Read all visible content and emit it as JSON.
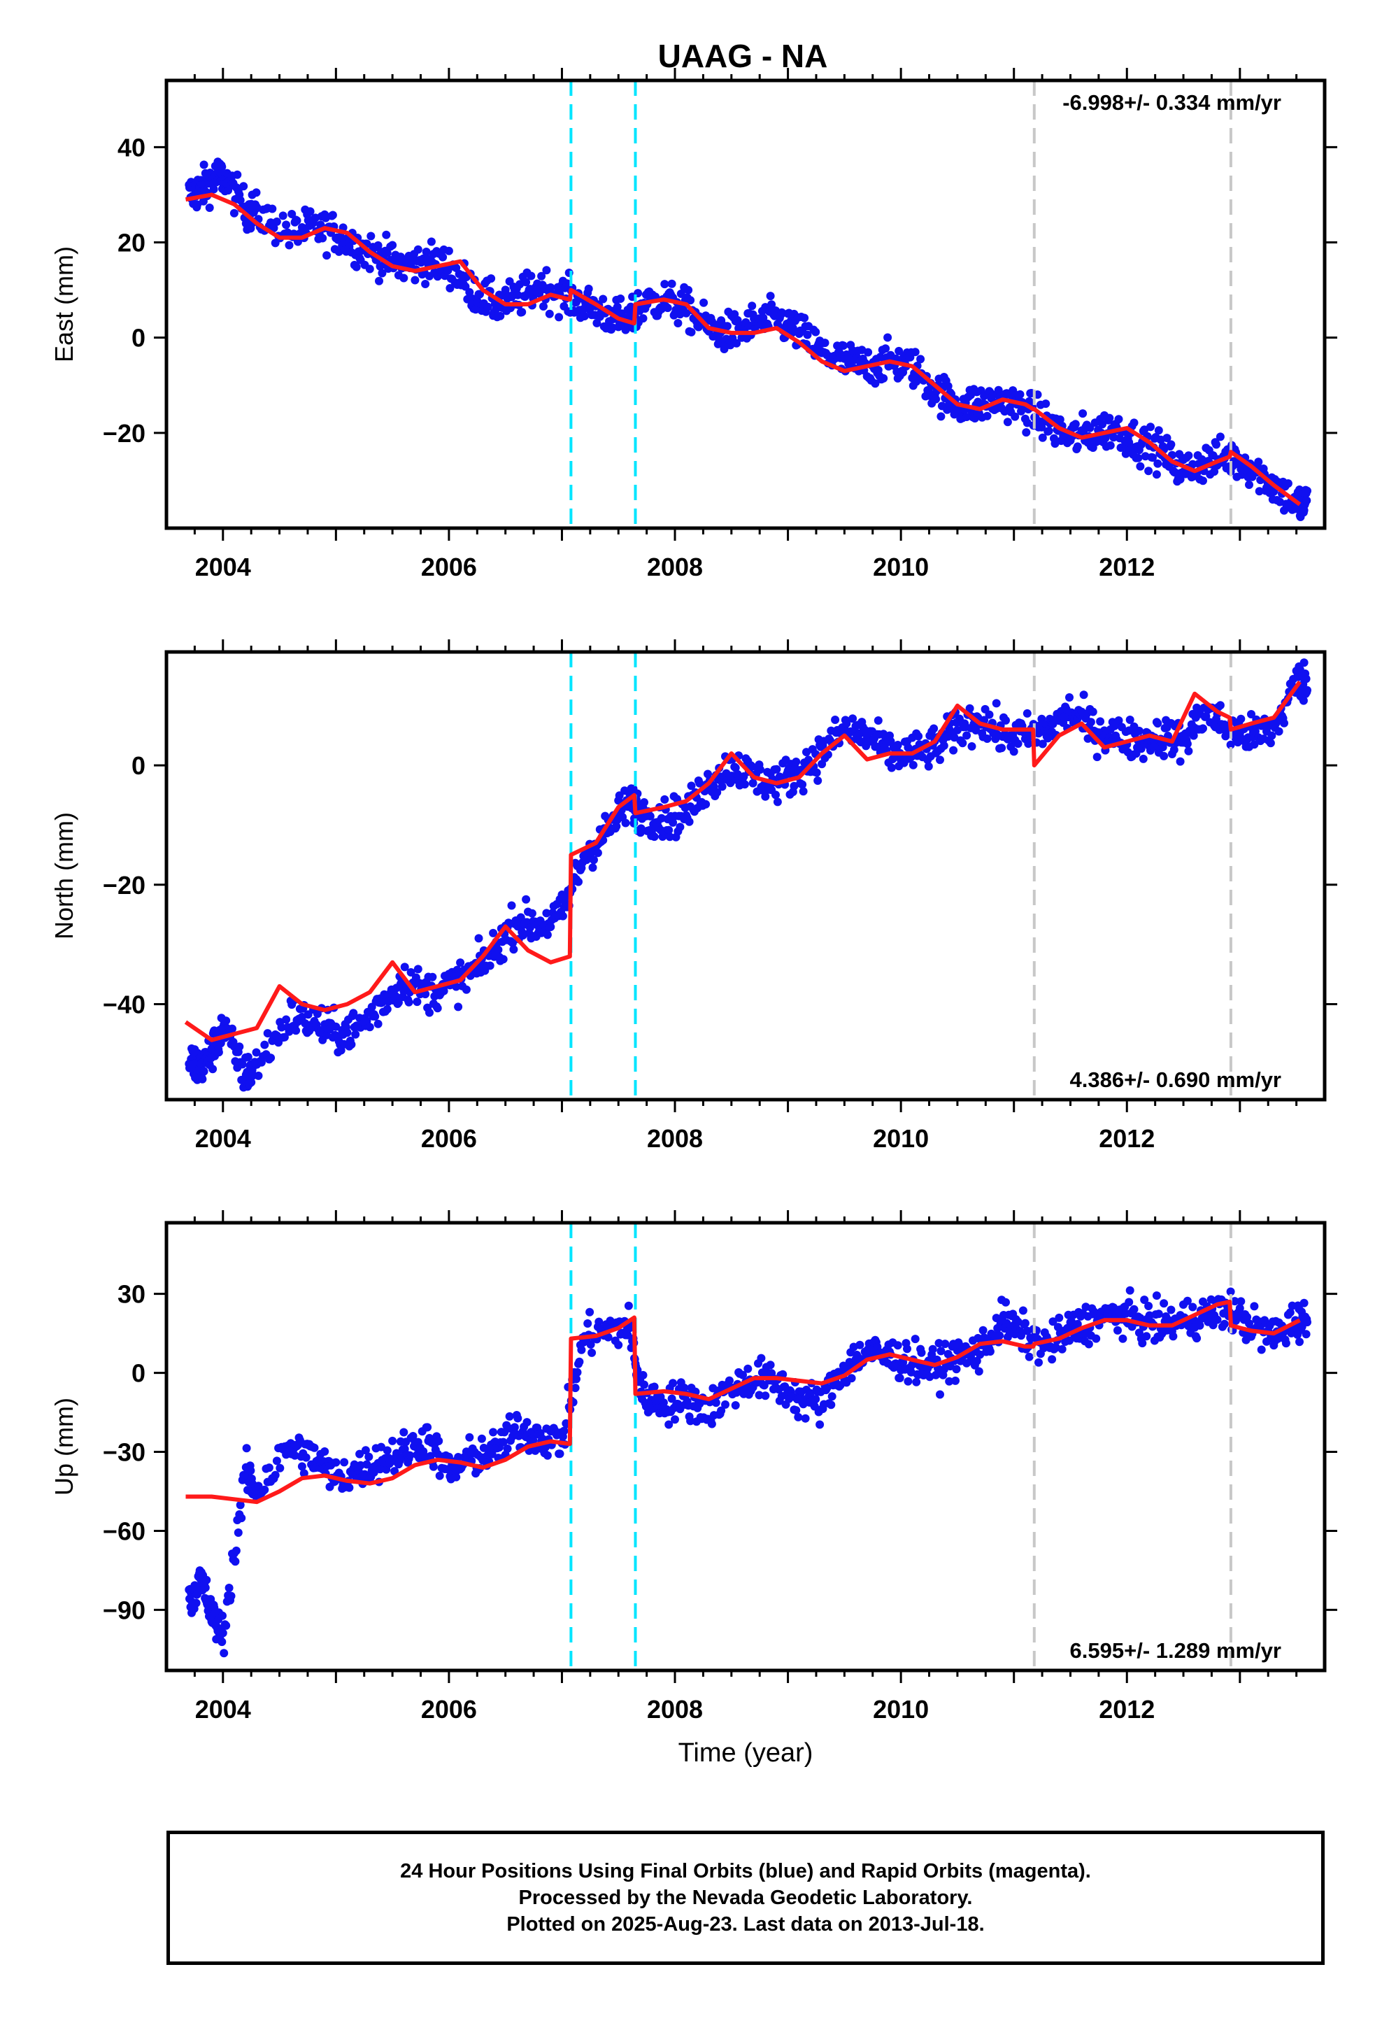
{
  "title": "UAAG - NA",
  "colors": {
    "points": "#1010f0",
    "fit": "#ff1a1a",
    "cyan_break": "#00e5ff",
    "grey_break": "#c8c8c8",
    "axis": "#000000"
  },
  "footer": {
    "line1": "24 Hour Positions Using Final Orbits (blue) and Rapid Orbits (magenta).",
    "line2": "Processed by the Nevada Geodetic Laboratory.",
    "line3": "Plotted on 2025-Aug-23. Last data on 2013-Jul-18."
  },
  "chart_data": [
    {
      "type": "scatter",
      "component": "East",
      "ylabel": "East (mm)",
      "xlabel": "",
      "xlim": [
        2003.5,
        2013.75
      ],
      "ylim": [
        -40,
        54
      ],
      "yticks": [
        -20,
        0,
        20,
        40
      ],
      "xticks": [
        2004,
        2006,
        2008,
        2010,
        2012
      ],
      "grid": false,
      "rate_label": "-6.998+/- 0.334 mm/yr",
      "rate_position": "top-right",
      "breaks_cyan": [
        2007.08,
        2007.65
      ],
      "breaks_grey": [
        2011.18,
        2012.92
      ],
      "series": [
        {
          "style": "points",
          "x": [
            2003.7,
            2003.8,
            2003.9,
            2004.0,
            2004.2,
            2004.3,
            2004.6,
            2004.8,
            2005.0,
            2005.2,
            2005.4,
            2005.6,
            2005.8,
            2006.0,
            2006.2,
            2006.4,
            2006.6,
            2006.8,
            2007.0,
            2007.2,
            2007.4,
            2007.6,
            2007.7,
            2007.9,
            2008.1,
            2008.3,
            2008.5,
            2008.7,
            2008.9,
            2009.1,
            2009.3,
            2009.5,
            2009.7,
            2009.9,
            2010.1,
            2010.3,
            2010.5,
            2010.7,
            2010.9,
            2011.1,
            2011.3,
            2011.5,
            2011.7,
            2011.9,
            2012.1,
            2012.3,
            2012.5,
            2012.7,
            2012.9,
            2013.1,
            2013.3,
            2013.5
          ],
          "y": [
            30,
            31,
            33,
            34,
            27,
            26,
            22,
            23,
            22,
            19,
            17,
            15,
            16,
            15,
            10,
            7,
            8,
            11,
            9,
            7,
            5,
            3,
            7,
            8,
            6,
            2,
            1,
            3,
            4,
            1,
            -3,
            -5,
            -6,
            -5,
            -6,
            -11,
            -14,
            -14,
            -13,
            -15,
            -18,
            -21,
            -20,
            -19,
            -22,
            -24,
            -28,
            -26,
            -25,
            -27,
            -31,
            -35
          ]
        },
        {
          "style": "line",
          "name": "",
          "x": [
            2003.67,
            2003.9,
            2004.1,
            2004.3,
            2004.5,
            2004.7,
            2004.9,
            2005.1,
            2005.3,
            2005.5,
            2005.7,
            2005.9,
            2006.1,
            2006.3,
            2006.5,
            2006.7,
            2006.9,
            2007.07,
            2007.08,
            2007.3,
            2007.5,
            2007.64,
            2007.65,
            2007.9,
            2008.1,
            2008.3,
            2008.5,
            2008.7,
            2008.9,
            2009.1,
            2009.3,
            2009.5,
            2009.7,
            2009.9,
            2010.1,
            2010.3,
            2010.5,
            2010.7,
            2010.9,
            2011.1,
            2011.17,
            2011.18,
            2011.4,
            2011.6,
            2011.8,
            2012.0,
            2012.2,
            2012.4,
            2012.6,
            2012.8,
            2012.91,
            2012.92,
            2013.1,
            2013.3,
            2013.53
          ],
          "y": [
            29,
            30,
            28,
            24,
            21,
            21,
            23,
            22,
            18,
            15,
            14,
            15,
            16,
            10,
            7,
            7,
            9,
            8,
            10,
            7,
            4,
            3,
            7,
            8,
            7,
            2,
            1,
            1,
            2,
            -1,
            -5,
            -7,
            -6,
            -5,
            -6,
            -10,
            -14,
            -15,
            -13,
            -14,
            -15,
            -15,
            -19,
            -21,
            -20,
            -19,
            -22,
            -26,
            -28,
            -26,
            -25,
            -24,
            -27,
            -31,
            -35
          ]
        }
      ]
    },
    {
      "type": "scatter",
      "component": "North",
      "ylabel": "North (mm)",
      "xlabel": "",
      "xlim": [
        2003.5,
        2013.75
      ],
      "ylim": [
        -56,
        19
      ],
      "yticks": [
        -40,
        -20,
        0
      ],
      "xticks": [
        2004,
        2006,
        2008,
        2010,
        2012
      ],
      "grid": false,
      "rate_label": "4.386+/- 0.690 mm/yr",
      "rate_position": "bottom-right",
      "breaks_cyan": [
        2007.08,
        2007.65
      ],
      "breaks_grey": [
        2011.18,
        2012.92
      ],
      "series": [
        {
          "style": "points",
          "x": [
            2003.7,
            2003.8,
            2003.9,
            2004.0,
            2004.2,
            2004.3,
            2004.6,
            2004.8,
            2005.0,
            2005.2,
            2005.4,
            2005.6,
            2005.8,
            2006.0,
            2006.2,
            2006.4,
            2006.6,
            2006.8,
            2007.0,
            2007.2,
            2007.4,
            2007.6,
            2007.7,
            2007.9,
            2008.1,
            2008.3,
            2008.5,
            2008.7,
            2008.9,
            2009.1,
            2009.3,
            2009.5,
            2009.7,
            2009.9,
            2010.1,
            2010.3,
            2010.5,
            2010.7,
            2010.9,
            2011.1,
            2011.3,
            2011.5,
            2011.7,
            2011.9,
            2012.1,
            2012.3,
            2012.5,
            2012.7,
            2012.9,
            2013.1,
            2013.3,
            2013.5
          ],
          "y": [
            -49,
            -51,
            -48,
            -44,
            -52,
            -50,
            -42,
            -43,
            -45,
            -44,
            -40,
            -36,
            -38,
            -37,
            -35,
            -31,
            -26,
            -27,
            -25,
            -15,
            -11,
            -6,
            -8,
            -9,
            -8,
            -3,
            0,
            -2,
            -3,
            -1,
            2,
            6,
            5,
            2,
            2,
            3,
            6,
            8,
            5,
            5,
            6,
            9,
            6,
            5,
            4,
            5,
            4,
            9,
            6,
            5,
            6,
            14
          ]
        },
        {
          "style": "line",
          "name": "",
          "x": [
            2003.67,
            2003.9,
            2004.1,
            2004.3,
            2004.5,
            2004.7,
            2004.9,
            2005.1,
            2005.3,
            2005.5,
            2005.7,
            2005.9,
            2006.1,
            2006.3,
            2006.5,
            2006.7,
            2006.9,
            2007.07,
            2007.08,
            2007.3,
            2007.5,
            2007.64,
            2007.65,
            2007.9,
            2008.1,
            2008.3,
            2008.5,
            2008.7,
            2008.9,
            2009.1,
            2009.3,
            2009.5,
            2009.7,
            2009.9,
            2010.1,
            2010.3,
            2010.5,
            2010.7,
            2010.9,
            2011.1,
            2011.17,
            2011.18,
            2011.4,
            2011.6,
            2011.8,
            2012.0,
            2012.2,
            2012.4,
            2012.6,
            2012.8,
            2012.91,
            2012.92,
            2013.1,
            2013.3,
            2013.53
          ],
          "y": [
            -43,
            -46,
            -45,
            -44,
            -37,
            -40,
            -41,
            -40,
            -38,
            -33,
            -38,
            -37,
            -36,
            -32,
            -27,
            -31,
            -33,
            -32,
            -15,
            -13,
            -7,
            -5,
            -8,
            -7,
            -6,
            -3,
            2,
            -2,
            -3,
            -2,
            2,
            5,
            1,
            2,
            2,
            4,
            10,
            7,
            6,
            6,
            6,
            0,
            5,
            7,
            3,
            4,
            5,
            4,
            12,
            9,
            8,
            6,
            7,
            8,
            14
          ]
        }
      ]
    },
    {
      "type": "scatter",
      "component": "Up",
      "ylabel": "Up (mm)",
      "xlabel": "Time (year)",
      "xlim": [
        2003.5,
        2013.75
      ],
      "ylim": [
        -113,
        57
      ],
      "yticks": [
        -90,
        -60,
        -30,
        0,
        30
      ],
      "xticks": [
        2004,
        2006,
        2008,
        2010,
        2012
      ],
      "grid": false,
      "rate_label": "6.595+/- 1.289 mm/yr",
      "rate_position": "bottom-right",
      "breaks_cyan": [
        2007.08,
        2007.65
      ],
      "breaks_grey": [
        2011.18,
        2012.92
      ],
      "series": [
        {
          "style": "points",
          "x": [
            2003.7,
            2003.8,
            2003.9,
            2004.0,
            2004.2,
            2004.3,
            2004.6,
            2004.8,
            2005.0,
            2005.2,
            2005.4,
            2005.6,
            2005.8,
            2006.0,
            2006.2,
            2006.4,
            2006.6,
            2006.8,
            2007.0,
            2007.2,
            2007.4,
            2007.6,
            2007.7,
            2007.9,
            2008.1,
            2008.3,
            2008.5,
            2008.7,
            2008.9,
            2009.1,
            2009.3,
            2009.5,
            2009.7,
            2009.9,
            2010.1,
            2010.3,
            2010.5,
            2010.7,
            2010.9,
            2011.1,
            2011.3,
            2011.5,
            2011.7,
            2011.9,
            2012.1,
            2012.3,
            2012.5,
            2012.7,
            2012.9,
            2013.1,
            2013.3,
            2013.5
          ],
          "y": [
            -86,
            -78,
            -92,
            -100,
            -38,
            -45,
            -28,
            -32,
            -40,
            -37,
            -33,
            -30,
            -25,
            -38,
            -32,
            -30,
            -22,
            -24,
            -26,
            14,
            16,
            18,
            -8,
            -12,
            -10,
            -14,
            -6,
            -2,
            -4,
            -10,
            -12,
            2,
            8,
            6,
            4,
            2,
            6,
            8,
            20,
            14,
            10,
            16,
            20,
            22,
            20,
            18,
            20,
            22,
            24,
            18,
            14,
            20
          ]
        },
        {
          "style": "line",
          "name": "",
          "x": [
            2003.67,
            2003.9,
            2004.1,
            2004.3,
            2004.5,
            2004.7,
            2004.9,
            2005.1,
            2005.3,
            2005.5,
            2005.7,
            2005.9,
            2006.1,
            2006.3,
            2006.5,
            2006.7,
            2006.9,
            2007.07,
            2007.08,
            2007.3,
            2007.5,
            2007.64,
            2007.65,
            2007.9,
            2008.1,
            2008.3,
            2008.5,
            2008.7,
            2008.9,
            2009.1,
            2009.3,
            2009.5,
            2009.7,
            2009.9,
            2010.1,
            2010.3,
            2010.5,
            2010.7,
            2010.9,
            2011.1,
            2011.17,
            2011.18,
            2011.4,
            2011.6,
            2011.8,
            2012.0,
            2012.2,
            2012.4,
            2012.6,
            2012.8,
            2012.91,
            2012.92,
            2013.1,
            2013.3,
            2013.53
          ],
          "y": [
            -47,
            -47,
            -48,
            -49,
            -45,
            -40,
            -39,
            -41,
            -42,
            -40,
            -35,
            -33,
            -34,
            -36,
            -33,
            -28,
            -26,
            -27,
            13,
            14,
            17,
            21,
            -8,
            -7,
            -8,
            -10,
            -6,
            -2,
            -2,
            -3,
            -4,
            -1,
            5,
            7,
            5,
            3,
            6,
            11,
            12,
            10,
            10,
            11,
            13,
            17,
            20,
            20,
            18,
            18,
            22,
            26,
            27,
            18,
            16,
            15,
            20
          ]
        }
      ]
    }
  ]
}
